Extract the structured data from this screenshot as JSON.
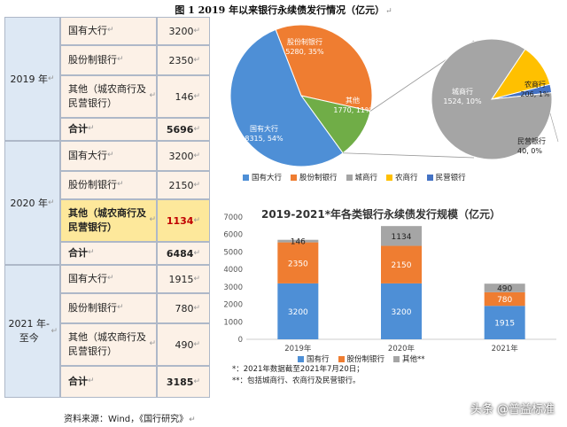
{
  "figure_title": "图 1 2019 年以来银行永续债发行情况（亿元）",
  "para_mark": "↵",
  "table": {
    "years": [
      {
        "label": "2019 年"
      },
      {
        "label": "2020 年"
      },
      {
        "label": "2021 年-至今"
      }
    ],
    "rows": [
      {
        "name": "国有大行",
        "value": "3200"
      },
      {
        "name": "股份制银行",
        "value": "2350"
      },
      {
        "name": "其他（城农商行及民营银行）",
        "value": "146"
      },
      {
        "name": "合计",
        "value": "5696"
      },
      {
        "name": "国有大行",
        "value": "3200"
      },
      {
        "name": "股份制银行",
        "value": "2150"
      },
      {
        "name": "其他（城农商行及民营银行）",
        "value": "1134"
      },
      {
        "name": "合计",
        "value": "6484"
      },
      {
        "name": "国有大行",
        "value": "1915"
      },
      {
        "name": "股份制银行",
        "value": "780"
      },
      {
        "name": "其他（城农商行及民营银行）",
        "value": "490"
      },
      {
        "name": "合计",
        "value": "3185"
      }
    ]
  },
  "source": "资料来源：Wind，《国行研究》",
  "watermark": "头条 @普益标准",
  "chart_data": [
    {
      "type": "pie",
      "slices": [
        {
          "label": "国有大行",
          "value": 8315,
          "percent": "54%",
          "color": "#4e8fd6"
        },
        {
          "label": "股份制银行",
          "value": 5280,
          "percent": "35%",
          "color": "#ef7d31"
        },
        {
          "label": "其他",
          "value": 1770,
          "percent": "11%",
          "color": "#70ad47"
        }
      ],
      "legend": [
        "国有大行",
        "股份制银行",
        "城商行",
        "农商行",
        "民营银行"
      ],
      "legend_placement": "bottom"
    },
    {
      "type": "pie",
      "slices": [
        {
          "label": "城商行",
          "value": 1524,
          "percent": "10%",
          "color": "#a5a5a5"
        },
        {
          "label": "农商行",
          "value": 206,
          "percent": "1%",
          "color": "#ffc000"
        },
        {
          "label": "民营银行",
          "value": 40,
          "percent": "0%",
          "color": "#4472c4"
        }
      ]
    },
    {
      "type": "bar",
      "stacked": true,
      "title": "2019-2021*年各类银行永续债发行规模（亿元）",
      "categories": [
        "2019年",
        "2020年",
        "2021年"
      ],
      "series": [
        {
          "name": "国有行",
          "values": [
            3200,
            3200,
            1915
          ],
          "color": "#4e8fd6"
        },
        {
          "name": "股份制银行",
          "values": [
            2350,
            2150,
            780
          ],
          "color": "#ef7d31"
        },
        {
          "name": "其他**",
          "values": [
            146,
            1134,
            490
          ],
          "color": "#a5a5a5"
        }
      ],
      "ylim": [
        0,
        7000
      ],
      "yticks": [
        0,
        1000,
        2000,
        3000,
        4000,
        5000,
        6000,
        7000
      ],
      "grid": false,
      "legend_placement": "bottom"
    }
  ],
  "notes": [
    "*：2021年数据截至2021年7月20日；",
    "**：包括城商行、农商行及民营银行。"
  ]
}
